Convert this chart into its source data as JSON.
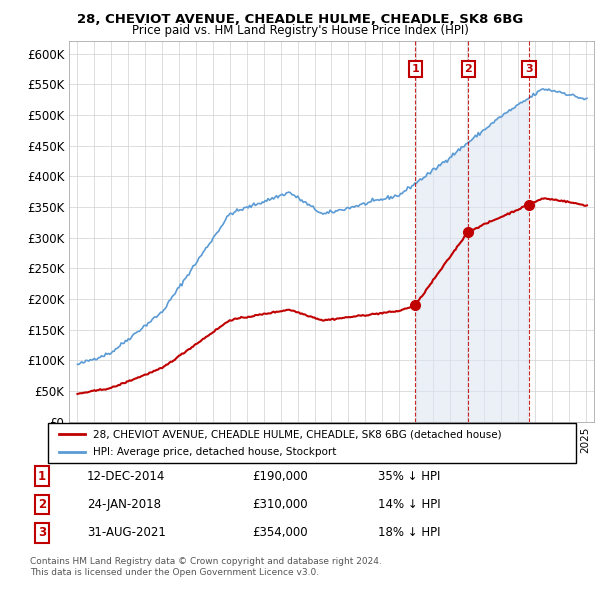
{
  "title1": "28, CHEVIOT AVENUE, CHEADLE HULME, CHEADLE, SK8 6BG",
  "title2": "Price paid vs. HM Land Registry's House Price Index (HPI)",
  "ylim": [
    0,
    620000
  ],
  "yticks": [
    0,
    50000,
    100000,
    150000,
    200000,
    250000,
    300000,
    350000,
    400000,
    450000,
    500000,
    550000,
    600000
  ],
  "ytick_labels": [
    "£0",
    "£50K",
    "£100K",
    "£150K",
    "£200K",
    "£250K",
    "£300K",
    "£350K",
    "£400K",
    "£450K",
    "£500K",
    "£550K",
    "£600K"
  ],
  "xlim": [
    1994.5,
    2025.5
  ],
  "sales": [
    {
      "year": 2014.95,
      "price": 190000,
      "label": "1"
    },
    {
      "year": 2018.07,
      "price": 310000,
      "label": "2"
    },
    {
      "year": 2021.66,
      "price": 354000,
      "label": "3"
    }
  ],
  "sale_table": [
    {
      "num": "1",
      "date": "12-DEC-2014",
      "price": "£190,000",
      "hpi": "35% ↓ HPI"
    },
    {
      "num": "2",
      "date": "24-JAN-2018",
      "price": "£310,000",
      "hpi": "14% ↓ HPI"
    },
    {
      "num": "3",
      "date": "31-AUG-2021",
      "price": "£354,000",
      "hpi": "18% ↓ HPI"
    }
  ],
  "hpi_color": "#5b9bd5",
  "sale_color": "#c00000",
  "shaded_color": "#dce6f1",
  "legend_label_red": "28, CHEVIOT AVENUE, CHEADLE HULME, CHEADLE, SK8 6BG (detached house)",
  "legend_label_blue": "HPI: Average price, detached house, Stockport",
  "footer1": "Contains HM Land Registry data © Crown copyright and database right 2024.",
  "footer2": "This data is licensed under the Open Government Licence v3.0."
}
